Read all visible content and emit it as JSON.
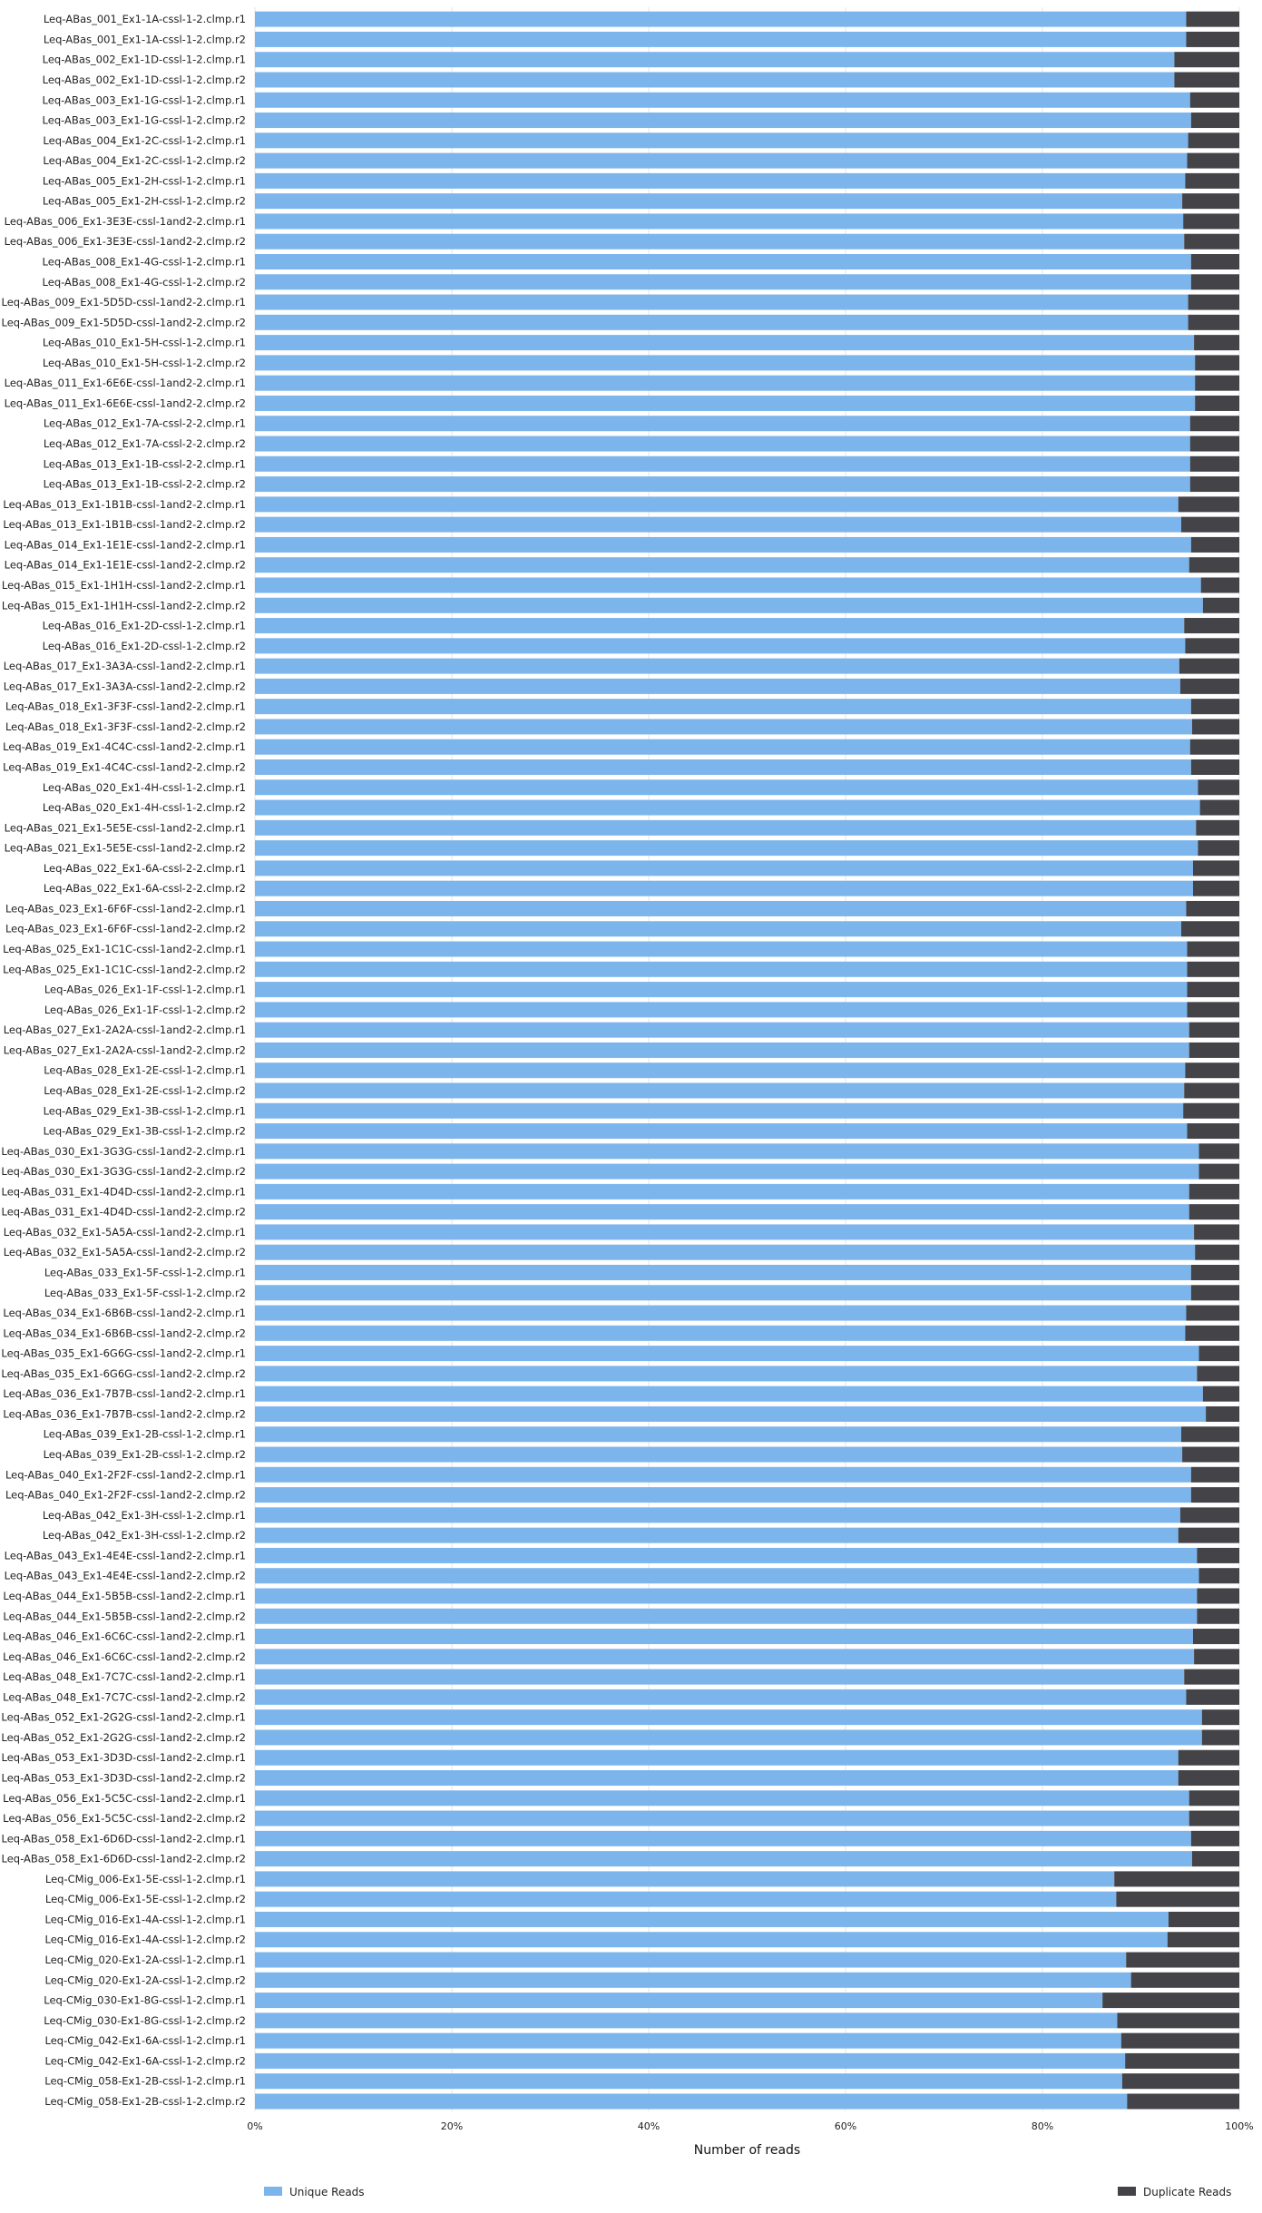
{
  "chart_data": {
    "type": "bar",
    "orientation": "horizontal",
    "stacked": "percent",
    "title": "",
    "xlabel": "Number of reads",
    "ylabel": "",
    "xlim": [
      0,
      100
    ],
    "x_ticks": [
      "0%",
      "20%",
      "40%",
      "60%",
      "80%",
      "100%"
    ],
    "grid": true,
    "legend_position": "bottom",
    "categories": [
      "Leq-ABas_001_Ex1-1A-cssl-1-2.clmp.r1",
      "Leq-ABas_001_Ex1-1A-cssl-1-2.clmp.r2",
      "Leq-ABas_002_Ex1-1D-cssl-1-2.clmp.r1",
      "Leq-ABas_002_Ex1-1D-cssl-1-2.clmp.r2",
      "Leq-ABas_003_Ex1-1G-cssl-1-2.clmp.r1",
      "Leq-ABas_003_Ex1-1G-cssl-1-2.clmp.r2",
      "Leq-ABas_004_Ex1-2C-cssl-1-2.clmp.r1",
      "Leq-ABas_004_Ex1-2C-cssl-1-2.clmp.r2",
      "Leq-ABas_005_Ex1-2H-cssl-1-2.clmp.r1",
      "Leq-ABas_005_Ex1-2H-cssl-1-2.clmp.r2",
      "Leq-ABas_006_Ex1-3E3E-cssl-1and2-2.clmp.r1",
      "Leq-ABas_006_Ex1-3E3E-cssl-1and2-2.clmp.r2",
      "Leq-ABas_008_Ex1-4G-cssl-1-2.clmp.r1",
      "Leq-ABas_008_Ex1-4G-cssl-1-2.clmp.r2",
      "Leq-ABas_009_Ex1-5D5D-cssl-1and2-2.clmp.r1",
      "Leq-ABas_009_Ex1-5D5D-cssl-1and2-2.clmp.r2",
      "Leq-ABas_010_Ex1-5H-cssl-1-2.clmp.r1",
      "Leq-ABas_010_Ex1-5H-cssl-1-2.clmp.r2",
      "Leq-ABas_011_Ex1-6E6E-cssl-1and2-2.clmp.r1",
      "Leq-ABas_011_Ex1-6E6E-cssl-1and2-2.clmp.r2",
      "Leq-ABas_012_Ex1-7A-cssl-2-2.clmp.r1",
      "Leq-ABas_012_Ex1-7A-cssl-2-2.clmp.r2",
      "Leq-ABas_013_Ex1-1B-cssl-2-2.clmp.r1",
      "Leq-ABas_013_Ex1-1B-cssl-2-2.clmp.r2",
      "Leq-ABas_013_Ex1-1B1B-cssl-1and2-2.clmp.r1",
      "Leq-ABas_013_Ex1-1B1B-cssl-1and2-2.clmp.r2",
      "Leq-ABas_014_Ex1-1E1E-cssl-1and2-2.clmp.r1",
      "Leq-ABas_014_Ex1-1E1E-cssl-1and2-2.clmp.r2",
      "Leq-ABas_015_Ex1-1H1H-cssl-1and2-2.clmp.r1",
      "Leq-ABas_015_Ex1-1H1H-cssl-1and2-2.clmp.r2",
      "Leq-ABas_016_Ex1-2D-cssl-1-2.clmp.r1",
      "Leq-ABas_016_Ex1-2D-cssl-1-2.clmp.r2",
      "Leq-ABas_017_Ex1-3A3A-cssl-1and2-2.clmp.r1",
      "Leq-ABas_017_Ex1-3A3A-cssl-1and2-2.clmp.r2",
      "Leq-ABas_018_Ex1-3F3F-cssl-1and2-2.clmp.r1",
      "Leq-ABas_018_Ex1-3F3F-cssl-1and2-2.clmp.r2",
      "Leq-ABas_019_Ex1-4C4C-cssl-1and2-2.clmp.r1",
      "Leq-ABas_019_Ex1-4C4C-cssl-1and2-2.clmp.r2",
      "Leq-ABas_020_Ex1-4H-cssl-1-2.clmp.r1",
      "Leq-ABas_020_Ex1-4H-cssl-1-2.clmp.r2",
      "Leq-ABas_021_Ex1-5E5E-cssl-1and2-2.clmp.r1",
      "Leq-ABas_021_Ex1-5E5E-cssl-1and2-2.clmp.r2",
      "Leq-ABas_022_Ex1-6A-cssl-2-2.clmp.r1",
      "Leq-ABas_022_Ex1-6A-cssl-2-2.clmp.r2",
      "Leq-ABas_023_Ex1-6F6F-cssl-1and2-2.clmp.r1",
      "Leq-ABas_023_Ex1-6F6F-cssl-1and2-2.clmp.r2",
      "Leq-ABas_025_Ex1-1C1C-cssl-1and2-2.clmp.r1",
      "Leq-ABas_025_Ex1-1C1C-cssl-1and2-2.clmp.r2",
      "Leq-ABas_026_Ex1-1F-cssl-1-2.clmp.r1",
      "Leq-ABas_026_Ex1-1F-cssl-1-2.clmp.r2",
      "Leq-ABas_027_Ex1-2A2A-cssl-1and2-2.clmp.r1",
      "Leq-ABas_027_Ex1-2A2A-cssl-1and2-2.clmp.r2",
      "Leq-ABas_028_Ex1-2E-cssl-1-2.clmp.r1",
      "Leq-ABas_028_Ex1-2E-cssl-1-2.clmp.r2",
      "Leq-ABas_029_Ex1-3B-cssl-1-2.clmp.r1",
      "Leq-ABas_029_Ex1-3B-cssl-1-2.clmp.r2",
      "Leq-ABas_030_Ex1-3G3G-cssl-1and2-2.clmp.r1",
      "Leq-ABas_030_Ex1-3G3G-cssl-1and2-2.clmp.r2",
      "Leq-ABas_031_Ex1-4D4D-cssl-1and2-2.clmp.r1",
      "Leq-ABas_031_Ex1-4D4D-cssl-1and2-2.clmp.r2",
      "Leq-ABas_032_Ex1-5A5A-cssl-1and2-2.clmp.r1",
      "Leq-ABas_032_Ex1-5A5A-cssl-1and2-2.clmp.r2",
      "Leq-ABas_033_Ex1-5F-cssl-1-2.clmp.r1",
      "Leq-ABas_033_Ex1-5F-cssl-1-2.clmp.r2",
      "Leq-ABas_034_Ex1-6B6B-cssl-1and2-2.clmp.r1",
      "Leq-ABas_034_Ex1-6B6B-cssl-1and2-2.clmp.r2",
      "Leq-ABas_035_Ex1-6G6G-cssl-1and2-2.clmp.r1",
      "Leq-ABas_035_Ex1-6G6G-cssl-1and2-2.clmp.r2",
      "Leq-ABas_036_Ex1-7B7B-cssl-1and2-2.clmp.r1",
      "Leq-ABas_036_Ex1-7B7B-cssl-1and2-2.clmp.r2",
      "Leq-ABas_039_Ex1-2B-cssl-1-2.clmp.r1",
      "Leq-ABas_039_Ex1-2B-cssl-1-2.clmp.r2",
      "Leq-ABas_040_Ex1-2F2F-cssl-1and2-2.clmp.r1",
      "Leq-ABas_040_Ex1-2F2F-cssl-1and2-2.clmp.r2",
      "Leq-ABas_042_Ex1-3H-cssl-1-2.clmp.r1",
      "Leq-ABas_042_Ex1-3H-cssl-1-2.clmp.r2",
      "Leq-ABas_043_Ex1-4E4E-cssl-1and2-2.clmp.r1",
      "Leq-ABas_043_Ex1-4E4E-cssl-1and2-2.clmp.r2",
      "Leq-ABas_044_Ex1-5B5B-cssl-1and2-2.clmp.r1",
      "Leq-ABas_044_Ex1-5B5B-cssl-1and2-2.clmp.r2",
      "Leq-ABas_046_Ex1-6C6C-cssl-1and2-2.clmp.r1",
      "Leq-ABas_046_Ex1-6C6C-cssl-1and2-2.clmp.r2",
      "Leq-ABas_048_Ex1-7C7C-cssl-1and2-2.clmp.r1",
      "Leq-ABas_048_Ex1-7C7C-cssl-1and2-2.clmp.r2",
      "Leq-ABas_052_Ex1-2G2G-cssl-1and2-2.clmp.r1",
      "Leq-ABas_052_Ex1-2G2G-cssl-1and2-2.clmp.r2",
      "Leq-ABas_053_Ex1-3D3D-cssl-1and2-2.clmp.r1",
      "Leq-ABas_053_Ex1-3D3D-cssl-1and2-2.clmp.r2",
      "Leq-ABas_056_Ex1-5C5C-cssl-1and2-2.clmp.r1",
      "Leq-ABas_056_Ex1-5C5C-cssl-1and2-2.clmp.r2",
      "Leq-ABas_058_Ex1-6D6D-cssl-1and2-2.clmp.r1",
      "Leq-ABas_058_Ex1-6D6D-cssl-1and2-2.clmp.r2",
      "Leq-CMig_006-Ex1-5E-cssl-1-2.clmp.r1",
      "Leq-CMig_006-Ex1-5E-cssl-1-2.clmp.r2",
      "Leq-CMig_016-Ex1-4A-cssl-1-2.clmp.r1",
      "Leq-CMig_016-Ex1-4A-cssl-1-2.clmp.r2",
      "Leq-CMig_020-Ex1-2A-cssl-1-2.clmp.r1",
      "Leq-CMig_020-Ex1-2A-cssl-1-2.clmp.r2",
      "Leq-CMig_030-Ex1-8G-cssl-1-2.clmp.r1",
      "Leq-CMig_030-Ex1-8G-cssl-1-2.clmp.r2",
      "Leq-CMig_042-Ex1-6A-cssl-1-2.clmp.r1",
      "Leq-CMig_042-Ex1-6A-cssl-1-2.clmp.r2",
      "Leq-CMig_058-Ex1-2B-cssl-1-2.clmp.r1",
      "Leq-CMig_058-Ex1-2B-cssl-1-2.clmp.r2"
    ],
    "series": [
      {
        "name": "Unique Reads",
        "color": "#7cb5ec",
        "values": [
          94.6,
          94.6,
          93.4,
          93.4,
          95.0,
          95.1,
          94.8,
          94.7,
          94.5,
          94.2,
          94.3,
          94.4,
          95.1,
          95.1,
          94.8,
          94.8,
          95.4,
          95.5,
          95.5,
          95.5,
          95.0,
          95.0,
          95.0,
          95.0,
          93.8,
          94.1,
          95.1,
          94.9,
          96.1,
          96.3,
          94.4,
          94.5,
          93.9,
          94.0,
          95.1,
          95.2,
          95.0,
          95.1,
          95.8,
          96.0,
          95.6,
          95.8,
          95.3,
          95.3,
          94.6,
          94.1,
          94.7,
          94.7,
          94.7,
          94.7,
          94.9,
          94.9,
          94.5,
          94.4,
          94.3,
          94.7,
          95.9,
          95.9,
          94.9,
          94.9,
          95.4,
          95.5,
          95.1,
          95.1,
          94.6,
          94.5,
          95.9,
          95.7,
          96.3,
          96.6,
          94.1,
          94.2,
          95.1,
          95.1,
          94.0,
          93.8,
          95.7,
          95.9,
          95.7,
          95.7,
          95.3,
          95.4,
          94.4,
          94.6,
          96.2,
          96.2,
          93.8,
          93.8,
          94.9,
          94.9,
          95.1,
          95.2,
          87.3,
          87.5,
          92.8,
          92.7,
          88.5,
          89.0,
          86.1,
          87.6,
          88.0,
          88.4,
          88.1,
          88.6
        ]
      },
      {
        "name": "Duplicate Reads",
        "color": "#434348",
        "values": [
          5.4,
          5.4,
          6.6,
          6.6,
          5.0,
          4.9,
          5.2,
          5.3,
          5.5,
          5.8,
          5.7,
          5.6,
          4.9,
          4.9,
          5.2,
          5.2,
          4.6,
          4.5,
          4.5,
          4.5,
          5.0,
          5.0,
          5.0,
          5.0,
          6.2,
          5.9,
          4.9,
          5.1,
          3.9,
          3.7,
          5.6,
          5.5,
          6.1,
          6.0,
          4.9,
          4.8,
          5.0,
          4.9,
          4.2,
          4.0,
          4.4,
          4.2,
          4.7,
          4.7,
          5.4,
          5.9,
          5.3,
          5.3,
          5.3,
          5.3,
          5.1,
          5.1,
          5.5,
          5.6,
          5.7,
          5.3,
          4.1,
          4.1,
          5.1,
          5.1,
          4.6,
          4.5,
          4.9,
          4.9,
          5.4,
          5.5,
          4.1,
          4.3,
          3.7,
          3.4,
          5.9,
          5.8,
          4.9,
          4.9,
          6.0,
          6.2,
          4.3,
          4.1,
          4.3,
          4.3,
          4.7,
          4.6,
          5.6,
          5.4,
          3.8,
          3.8,
          6.2,
          6.2,
          5.1,
          5.1,
          4.9,
          4.8,
          12.7,
          12.5,
          7.2,
          7.3,
          11.5,
          11.0,
          13.9,
          12.4,
          12.0,
          11.6,
          11.9,
          11.4
        ]
      }
    ]
  }
}
